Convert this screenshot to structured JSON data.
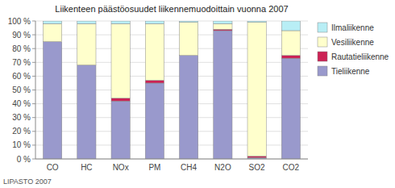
{
  "chart_data": {
    "type": "bar",
    "stacked": true,
    "title": "Liikenteen päästöosuudet liikennemuodoittain vuonna 2007",
    "caption": "LIPASTO 2007",
    "categories": [
      "CO",
      "HC",
      "NOx",
      "PM",
      "CH4",
      "N2O",
      "SO2",
      "CO2"
    ],
    "series": [
      {
        "name": "Tieliikenne",
        "color": "#9999cc",
        "values": [
          85,
          68,
          42,
          55,
          75,
          93,
          1,
          73
        ]
      },
      {
        "name": "Rautatieliikenne",
        "color": "#cc2255",
        "values": [
          0,
          0,
          2,
          2,
          0,
          1,
          1,
          2
        ]
      },
      {
        "name": "Vesiliikenne",
        "color": "#ffffcc",
        "values": [
          13,
          30,
          54,
          41,
          24,
          4,
          97,
          18
        ]
      },
      {
        "name": "Ilmaliikenne",
        "color": "#b8eef5",
        "values": [
          2,
          2,
          2,
          2,
          1,
          2,
          1,
          7
        ]
      }
    ],
    "ylim": [
      0,
      100
    ],
    "yticks": [
      {
        "value": 0,
        "label": "0 %"
      },
      {
        "value": 10,
        "label": "10 %"
      },
      {
        "value": 20,
        "label": "20 %"
      },
      {
        "value": 30,
        "label": "30 %"
      },
      {
        "value": 40,
        "label": "40 %"
      },
      {
        "value": 50,
        "label": "50 %"
      },
      {
        "value": 60,
        "label": "60 %"
      },
      {
        "value": 70,
        "label": "70 %"
      },
      {
        "value": 80,
        "label": "80 %"
      },
      {
        "value": 90,
        "label": "90 %"
      },
      {
        "value": 100,
        "label": "100 %"
      }
    ],
    "grid": true,
    "legend": "right"
  }
}
